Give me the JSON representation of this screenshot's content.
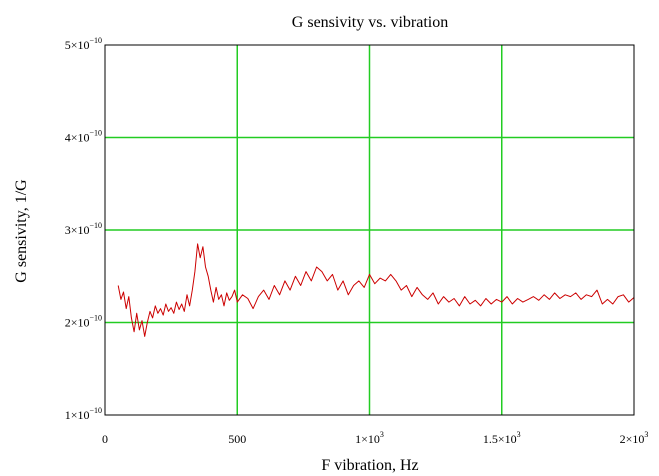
{
  "chart_data": {
    "type": "line",
    "title": "G sensivity vs. vibration",
    "xlabel": "F vibration, Hz",
    "ylabel": "G sensivity, 1/G",
    "xlim": [
      0,
      2000
    ],
    "ylim": [
      1e-10,
      5e-10
    ],
    "xticks": [
      {
        "value": 0,
        "label": "0"
      },
      {
        "value": 500,
        "label": "500"
      },
      {
        "value": 1000,
        "label": "1×10",
        "exp": "3"
      },
      {
        "value": 1500,
        "label": "1.5×10",
        "exp": "3"
      },
      {
        "value": 2000,
        "label": "2×10",
        "exp": "3"
      }
    ],
    "yticks": [
      {
        "value": 1e-10,
        "label": "1×10",
        "exp": "−10"
      },
      {
        "value": 2e-10,
        "label": "2×10",
        "exp": "−10"
      },
      {
        "value": 3e-10,
        "label": "3×10",
        "exp": "−10"
      },
      {
        "value": 4e-10,
        "label": "4×10",
        "exp": "−10"
      },
      {
        "value": 5e-10,
        "label": "5×10",
        "exp": "−10"
      }
    ],
    "grid": true,
    "grid_color": "#22cc22",
    "frame_color": "#000000",
    "series": [
      {
        "color": "#cc0000",
        "x": [
          50,
          60,
          70,
          80,
          90,
          100,
          110,
          120,
          130,
          140,
          150,
          160,
          170,
          180,
          190,
          200,
          210,
          220,
          230,
          240,
          250,
          260,
          270,
          280,
          290,
          300,
          310,
          320,
          330,
          340,
          350,
          360,
          370,
          380,
          390,
          400,
          410,
          420,
          430,
          440,
          450,
          460,
          470,
          480,
          490,
          500,
          520,
          540,
          560,
          580,
          600,
          620,
          640,
          660,
          680,
          700,
          720,
          740,
          760,
          780,
          800,
          820,
          840,
          860,
          880,
          900,
          920,
          940,
          960,
          980,
          1000,
          1020,
          1040,
          1060,
          1080,
          1100,
          1120,
          1140,
          1160,
          1180,
          1200,
          1220,
          1240,
          1260,
          1280,
          1300,
          1320,
          1340,
          1360,
          1380,
          1400,
          1420,
          1440,
          1460,
          1480,
          1500,
          1520,
          1540,
          1560,
          1580,
          1600,
          1620,
          1640,
          1660,
          1680,
          1700,
          1720,
          1740,
          1760,
          1780,
          1800,
          1820,
          1840,
          1860,
          1880,
          1900,
          1920,
          1940,
          1960,
          1980,
          2000
        ],
        "y": [
          2.4e-10,
          2.25e-10,
          2.33e-10,
          2.15e-10,
          2.28e-10,
          2.05e-10,
          1.9e-10,
          2.1e-10,
          1.92e-10,
          2.02e-10,
          1.85e-10,
          2e-10,
          2.12e-10,
          2.05e-10,
          2.18e-10,
          2.1e-10,
          2.15e-10,
          2.08e-10,
          2.2e-10,
          2.12e-10,
          2.16e-10,
          2.1e-10,
          2.22e-10,
          2.14e-10,
          2.2e-10,
          2.12e-10,
          2.3e-10,
          2.18e-10,
          2.35e-10,
          2.55e-10,
          2.85e-10,
          2.7e-10,
          2.82e-10,
          2.6e-10,
          2.5e-10,
          2.35e-10,
          2.22e-10,
          2.38e-10,
          2.25e-10,
          2.3e-10,
          2.18e-10,
          2.32e-10,
          2.24e-10,
          2.28e-10,
          2.35e-10,
          2.22e-10,
          2.3e-10,
          2.26e-10,
          2.15e-10,
          2.28e-10,
          2.35e-10,
          2.25e-10,
          2.4e-10,
          2.3e-10,
          2.45e-10,
          2.35e-10,
          2.5e-10,
          2.4e-10,
          2.55e-10,
          2.45e-10,
          2.6e-10,
          2.55e-10,
          2.45e-10,
          2.52e-10,
          2.35e-10,
          2.45e-10,
          2.3e-10,
          2.4e-10,
          2.45e-10,
          2.38e-10,
          2.52e-10,
          2.42e-10,
          2.48e-10,
          2.45e-10,
          2.52e-10,
          2.45e-10,
          2.35e-10,
          2.4e-10,
          2.28e-10,
          2.38e-10,
          2.3e-10,
          2.25e-10,
          2.32e-10,
          2.2e-10,
          2.28e-10,
          2.22e-10,
          2.26e-10,
          2.18e-10,
          2.28e-10,
          2.2e-10,
          2.24e-10,
          2.18e-10,
          2.26e-10,
          2.2e-10,
          2.25e-10,
          2.22e-10,
          2.28e-10,
          2.2e-10,
          2.26e-10,
          2.22e-10,
          2.25e-10,
          2.28e-10,
          2.24e-10,
          2.3e-10,
          2.25e-10,
          2.32e-10,
          2.26e-10,
          2.3e-10,
          2.28e-10,
          2.32e-10,
          2.25e-10,
          2.3e-10,
          2.28e-10,
          2.35e-10,
          2.2e-10,
          2.25e-10,
          2.2e-10,
          2.28e-10,
          2.3e-10,
          2.22e-10,
          2.27e-10
        ]
      }
    ]
  }
}
